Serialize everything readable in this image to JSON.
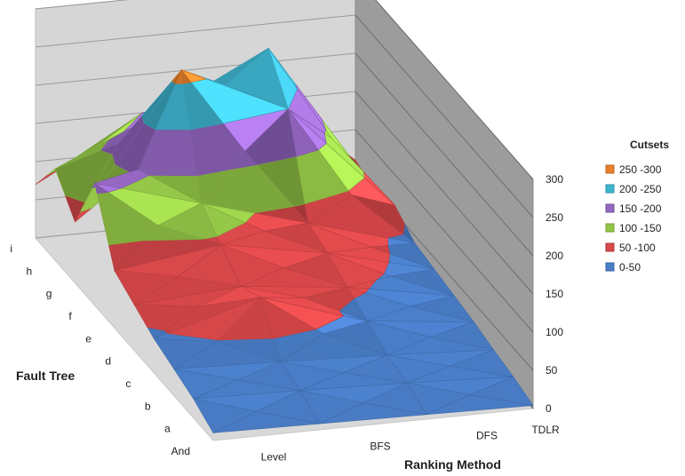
{
  "chart_data": {
    "type": "surface",
    "title": "",
    "x_axis_title": "Ranking Method",
    "y_axis_title": "Fault Tree",
    "z_axis_title": "",
    "x_categories": [
      "Level",
      "BFS",
      "DFS",
      "TDLR"
    ],
    "y_categories": [
      "And",
      "a",
      "b",
      "c",
      "d",
      "e",
      "f",
      "g",
      "h",
      "i"
    ],
    "z_ticks": [
      "0",
      "50",
      "100",
      "150",
      "200",
      "250",
      "300"
    ],
    "zlim": [
      0,
      300
    ],
    "values": [
      [
        10,
        8,
        6,
        4
      ],
      [
        25,
        22,
        18,
        12
      ],
      [
        35,
        30,
        25,
        18
      ],
      [
        45,
        85,
        40,
        25
      ],
      [
        60,
        70,
        55,
        30
      ],
      [
        75,
        95,
        70,
        35
      ],
      [
        160,
        120,
        80,
        40
      ],
      [
        80,
        265,
        200,
        60
      ],
      [
        120,
        180,
        250,
        50
      ],
      [
        70,
        150,
        130,
        60
      ]
    ],
    "legend_title": "Cutsets",
    "legend": [
      {
        "label": "250 -300",
        "color": "#e8802c",
        "min": 250,
        "max": 300
      },
      {
        "label": "200 -250",
        "color": "#3fb5d0",
        "min": 200,
        "max": 250
      },
      {
        "label": "150 -200",
        "color": "#9467c2",
        "min": 150,
        "max": 200
      },
      {
        "label": "100 -150",
        "color": "#93c547",
        "min": 100,
        "max": 150
      },
      {
        "label": "50 -100",
        "color": "#d9484a",
        "min": 50,
        "max": 100
      },
      {
        "label": "0-50",
        "color": "#4a7ec8",
        "min": 0,
        "max": 50
      }
    ],
    "wall_color": "#9c9c9c",
    "floor_color": "#d8d8d8"
  }
}
